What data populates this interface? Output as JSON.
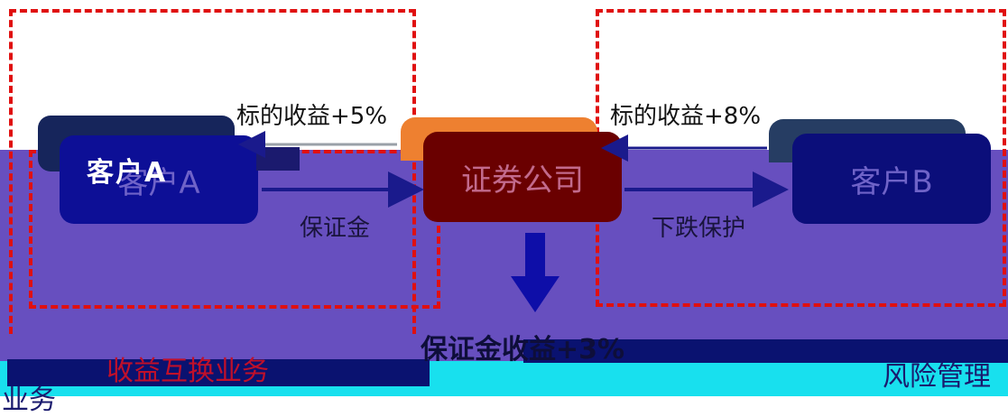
{
  "nodes": {
    "client_a": "客户A",
    "client_a_overlay": "客户A",
    "securities_company": "证券公司",
    "client_b": "客户B"
  },
  "edge_labels": {
    "underlying_return_a": "标的收益+5%",
    "underlying_return_b": "标的收益+8%",
    "margin": "保证金",
    "downside_protection": "下跌保护"
  },
  "bottom": {
    "margin_return": "保证金收益+3%",
    "fee_income": "收益互换业务",
    "risk_management": "风险管理",
    "business": "业务"
  },
  "colors": {
    "background_band": "#674fbf",
    "dashed_border": "#e01010",
    "client_a_box": "#0d0f96",
    "securities_box": "#6a0000",
    "securities_back": "#ee8030",
    "client_b_box": "#0b0e7a",
    "arrow": "#1a1a8c"
  }
}
